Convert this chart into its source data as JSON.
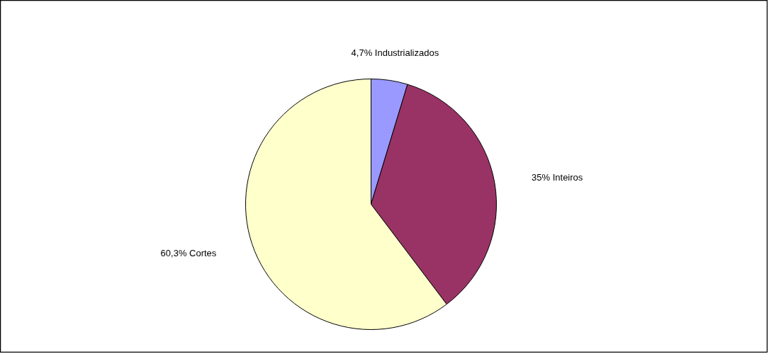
{
  "chart_data": {
    "type": "pie",
    "categories": [
      "Industrializados",
      "Inteiros",
      "Cortes"
    ],
    "values": [
      4.7,
      35,
      60.3
    ],
    "value_labels": [
      "4,7%",
      "35%",
      "60,3%"
    ],
    "colors": [
      "#9999ff",
      "#993366",
      "#ffffcc"
    ]
  }
}
